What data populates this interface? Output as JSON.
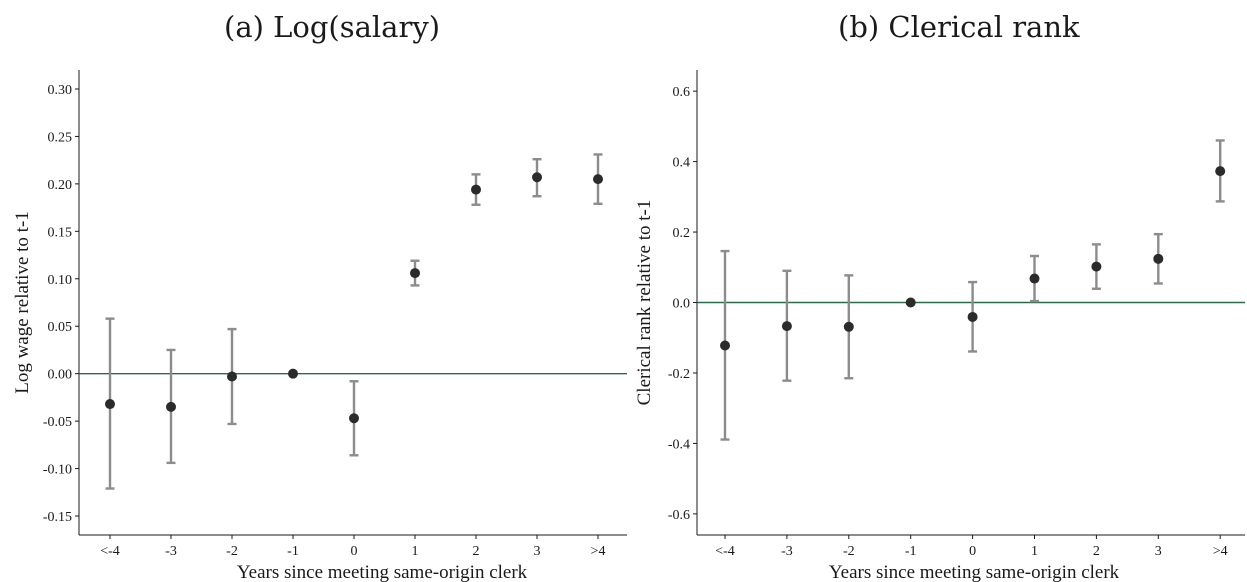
{
  "chart_data": [
    {
      "type": "scatter",
      "title": "(a) Log(salary)",
      "xlabel": "Years since meeting same-origin clerk",
      "ylabel": "Log wage relative to t-1",
      "categories": [
        "<-4",
        "-3",
        "-2",
        "-1",
        "0",
        "1",
        "2",
        "3",
        ">4"
      ],
      "values": [
        -0.032,
        -0.035,
        -0.003,
        0.0,
        -0.047,
        0.106,
        0.194,
        0.207,
        0.205
      ],
      "ci_low": [
        -0.121,
        -0.094,
        -0.053,
        0.0,
        -0.086,
        0.093,
        0.178,
        0.187,
        0.179
      ],
      "ci_high": [
        0.058,
        0.025,
        0.047,
        0.0,
        -0.008,
        0.119,
        0.21,
        0.226,
        0.231
      ],
      "ylim": [
        -0.17,
        0.32
      ],
      "yticks": [
        "0.30",
        "0.25",
        "0.20",
        "0.15",
        "0.10",
        "0.05",
        "0.00",
        "-0.05",
        "-0.10",
        "-0.15"
      ],
      "ytick_values": [
        0.3,
        0.25,
        0.2,
        0.15,
        0.1,
        0.05,
        0.0,
        -0.05,
        -0.1,
        -0.15
      ],
      "reference_line": 0.0,
      "grid": false,
      "colors": {
        "point": "#2b2b2b",
        "errorbar": "#8c8c8c",
        "reference": "#2e6b4a",
        "axis": "#1a1a1a"
      }
    },
    {
      "type": "scatter",
      "title": "(b) Clerical rank",
      "xlabel": "Years since meeting same-origin clerk",
      "ylabel": "Clerical rank relative to t-1",
      "categories": [
        "<-4",
        "-3",
        "-2",
        "-1",
        "0",
        "1",
        "2",
        "3",
        ">4"
      ],
      "values": [
        -0.122,
        -0.067,
        -0.069,
        0.0,
        -0.041,
        0.068,
        0.102,
        0.124,
        0.373
      ],
      "ci_low": [
        -0.389,
        -0.222,
        -0.215,
        0.0,
        -0.139,
        0.004,
        0.039,
        0.054,
        0.287
      ],
      "ci_high": [
        0.146,
        0.09,
        0.077,
        0.0,
        0.058,
        0.132,
        0.165,
        0.194,
        0.46
      ],
      "ylim": [
        -0.66,
        0.66
      ],
      "yticks": [
        "0.6",
        "0.4",
        "0.2",
        "0.0",
        "-0.2",
        "-0.4",
        "-0.6"
      ],
      "ytick_values": [
        0.6,
        0.4,
        0.2,
        0.0,
        -0.2,
        -0.4,
        -0.6
      ],
      "reference_line": 0.0,
      "grid": false,
      "colors": {
        "point": "#2b2b2b",
        "errorbar": "#8c8c8c",
        "reference": "#2e6b4a",
        "axis": "#1a1a1a"
      }
    }
  ]
}
